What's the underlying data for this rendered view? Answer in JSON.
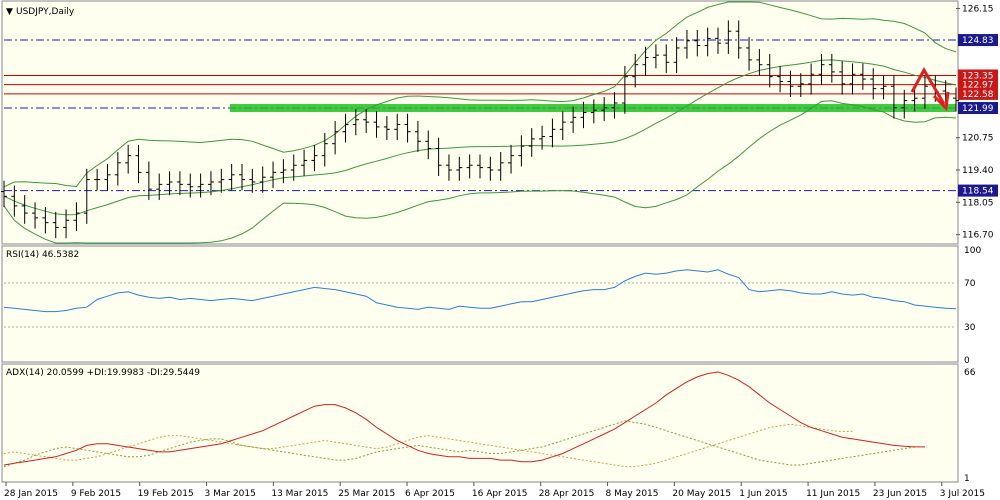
{
  "colors": {
    "background": "#fffff0",
    "bands": "#3a9a3a",
    "candles": "#000000",
    "rsi": "#2a7fd4",
    "adx": "#d82020",
    "di_plus": "#7aa030",
    "di_minus": "#c8a040",
    "support": "#22c022",
    "resistance": "#d00000",
    "level_line": "#2020a0",
    "arrow": "#e02020",
    "level_box": "#1a1a8c",
    "red_box": "#c81818"
  },
  "header": {
    "symbol": "USDJPY,Daily",
    "rsi": "RSI(14) 46.5382",
    "adx": "ADX(14) 20.0599 +DI:19.9983 -DI:29.5449"
  },
  "chart_data": [
    {
      "type": "candlestick",
      "title": "USDJPY,Daily",
      "ylim": [
        116.35,
        126.42
      ],
      "y_ticks": [
        "126.15",
        "124.83",
        "123.35",
        "122.97",
        "122.58",
        "121.99",
        "120.75",
        "119.40",
        "118.54",
        "118.05",
        "116.70"
      ],
      "levels": [
        {
          "value": 124.83,
          "style": "dashdot",
          "label": "124.83"
        },
        {
          "value": 123.35,
          "style": "solid-red",
          "label": "123.35"
        },
        {
          "value": 122.97,
          "style": "solid-red",
          "label": "122.97"
        },
        {
          "value": 122.58,
          "style": "solid-red",
          "label": "122.58"
        },
        {
          "value": 121.99,
          "style": "dashdot",
          "label": "121.99"
        },
        {
          "value": 118.54,
          "style": "dashdot",
          "label": "118.54"
        }
      ],
      "x_labels": [
        "28 Jan 2015",
        "9 Feb 2015",
        "19 Feb 2015",
        "3 Mar 2015",
        "13 Mar 2015",
        "25 Mar 2015",
        "6 Apr 2015",
        "16 Apr 2015",
        "28 Apr 2015",
        "8 May 2015",
        "20 May 2015",
        "1 Jun 2015",
        "11 Jun 2015",
        "23 Jun 2015",
        "3 Jul 2015"
      ],
      "close": [
        118.3,
        117.9,
        117.6,
        117.4,
        117.2,
        117.0,
        117.3,
        117.6,
        119.0,
        119.0,
        119.2,
        119.7,
        120.0,
        119.3,
        118.6,
        118.8,
        118.9,
        118.8,
        118.7,
        118.8,
        118.9,
        119.0,
        119.2,
        119.0,
        118.9,
        119.1,
        119.3,
        119.4,
        119.6,
        119.8,
        120.0,
        120.5,
        121.0,
        121.3,
        121.5,
        121.4,
        121.2,
        121.1,
        121.3,
        121.0,
        120.6,
        120.3,
        119.6,
        119.4,
        119.5,
        119.6,
        119.5,
        119.4,
        119.7,
        120.0,
        120.4,
        120.7,
        120.8,
        121.1,
        121.4,
        121.6,
        121.8,
        121.9,
        122.0,
        122.2,
        123.3,
        123.8,
        124.1,
        124.2,
        123.9,
        124.5,
        124.8,
        124.6,
        124.9,
        124.7,
        125.2,
        124.5,
        124.0,
        123.8,
        123.3,
        123.1,
        122.9,
        123.0,
        123.4,
        123.8,
        123.5,
        123.0,
        123.4,
        123.2,
        122.8,
        122.9,
        122.0,
        122.3,
        122.4,
        122.9,
        122.7,
        122.4,
        122.3
      ],
      "rsi_ylim": [
        0,
        100
      ],
      "rsi_ticks": [
        "100",
        "70",
        "30",
        "0"
      ],
      "rsi": [
        48,
        47,
        46,
        45,
        44,
        44,
        45,
        47,
        48,
        55,
        58,
        61,
        62,
        59,
        57,
        56,
        57,
        55,
        56,
        55,
        54,
        55,
        56,
        55,
        54,
        56,
        58,
        60,
        62,
        64,
        66,
        65,
        64,
        62,
        60,
        58,
        52,
        50,
        48,
        47,
        46,
        48,
        47,
        46,
        49,
        48,
        47,
        47,
        49,
        51,
        53,
        53,
        55,
        57,
        59,
        61,
        63,
        64,
        64,
        66,
        72,
        76,
        79,
        78,
        79,
        81,
        82,
        81,
        80,
        82,
        78,
        75,
        64,
        62,
        63,
        64,
        63,
        61,
        60,
        60,
        62,
        60,
        59,
        60,
        57,
        56,
        54,
        53,
        50,
        49,
        48,
        47,
        46.5382
      ],
      "adx_ylim": [
        1,
        66
      ],
      "adx_ticks": [
        "66",
        "1"
      ],
      "adx": [
        9,
        10,
        11,
        12,
        13,
        14,
        16,
        18,
        21,
        22,
        22,
        21,
        20,
        19,
        18,
        17,
        17,
        18,
        19,
        20,
        21,
        22,
        24,
        26,
        28,
        30,
        33,
        36,
        39,
        42,
        45,
        46,
        46,
        44,
        41,
        37,
        32,
        28,
        24,
        21,
        18,
        16,
        15,
        14,
        14,
        13,
        13,
        13,
        12,
        12,
        11,
        11,
        12,
        14,
        16,
        19,
        22,
        25,
        28,
        31,
        35,
        39,
        43,
        47,
        52,
        56,
        60,
        63,
        65,
        66,
        64,
        61,
        57,
        52,
        47,
        43,
        39,
        35,
        32,
        30,
        28,
        26,
        25,
        24,
        23,
        22,
        21,
        20.5,
        20.1,
        20.0599
      ],
      "di_plus": [
        8,
        10,
        12,
        15,
        17,
        19,
        20,
        19,
        18,
        17,
        16,
        15,
        14,
        14,
        15,
        17,
        19,
        21,
        23,
        24,
        25,
        25,
        23,
        21,
        20,
        19,
        18,
        17,
        16,
        15,
        14,
        13,
        12,
        12,
        13,
        15,
        17,
        18,
        19,
        20,
        21,
        20,
        19,
        18,
        17,
        18,
        17,
        16,
        16,
        17,
        18,
        19,
        20,
        22,
        24,
        26,
        28,
        30,
        32,
        34,
        36,
        35,
        34,
        32,
        30,
        28,
        26,
        24,
        22,
        20,
        18,
        16,
        14,
        12,
        11,
        10,
        9,
        9,
        10,
        11,
        12,
        13,
        14,
        15,
        16,
        17,
        18,
        19,
        19.9983
      ],
      "di_minus": [
        16,
        17,
        16,
        15,
        14,
        13,
        12,
        12,
        13,
        14,
        16,
        18,
        20,
        22,
        24,
        26,
        27,
        27,
        26,
        25,
        24,
        23,
        22,
        21,
        20,
        19,
        19,
        20,
        21,
        22,
        23,
        24,
        23,
        22,
        21,
        20,
        19,
        20,
        22,
        24,
        26,
        27,
        26,
        25,
        24,
        23,
        22,
        21,
        20,
        19,
        18,
        17,
        16,
        15,
        14,
        13,
        12,
        11,
        10,
        9,
        8,
        8,
        9,
        10,
        12,
        14,
        16,
        18,
        20,
        22,
        24,
        26,
        28,
        30,
        32,
        33,
        34,
        33,
        32,
        31,
        30,
        29.5,
        29.5449
      ]
    }
  ]
}
